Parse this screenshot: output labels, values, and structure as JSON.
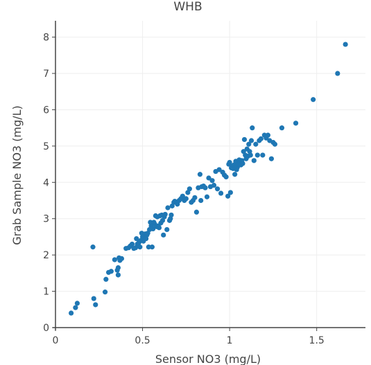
{
  "chart_data": {
    "type": "scatter",
    "title": "WHB",
    "xlabel": "Sensor NO3 (mg/L)",
    "ylabel": "Grab Sample NO3 (mg/L)",
    "xlim": [
      0,
      1.78
    ],
    "ylim": [
      0,
      8.45
    ],
    "xticks": [
      0,
      0.5,
      1,
      1.5
    ],
    "xtick_labels": [
      "0",
      "0.5",
      "1",
      "1.5"
    ],
    "yticks": [
      0,
      1,
      2,
      3,
      4,
      5,
      6,
      7,
      8
    ],
    "ytick_labels": [
      "0",
      "1",
      "2",
      "3",
      "4",
      "5",
      "6",
      "7",
      "8"
    ],
    "grid": true,
    "colors": {
      "marker": "#1f77b4",
      "grid": "#eeeeee",
      "axis": "#444444"
    },
    "series": [
      {
        "x": [
          0.09,
          0.115,
          0.125,
          0.215,
          0.22,
          0.23,
          0.285,
          0.29,
          0.305,
          0.32,
          0.34,
          0.355,
          0.36,
          0.36,
          0.365,
          0.37,
          0.38,
          0.405,
          0.42,
          0.43,
          0.44,
          0.45,
          0.46,
          0.465,
          0.47,
          0.475,
          0.48,
          0.485,
          0.49,
          0.495,
          0.5,
          0.505,
          0.51,
          0.515,
          0.52,
          0.525,
          0.53,
          0.535,
          0.54,
          0.545,
          0.55,
          0.555,
          0.56,
          0.565,
          0.57,
          0.575,
          0.58,
          0.585,
          0.59,
          0.595,
          0.6,
          0.605,
          0.61,
          0.615,
          0.62,
          0.625,
          0.63,
          0.64,
          0.645,
          0.655,
          0.66,
          0.665,
          0.67,
          0.68,
          0.685,
          0.7,
          0.71,
          0.72,
          0.73,
          0.74,
          0.75,
          0.76,
          0.77,
          0.78,
          0.79,
          0.8,
          0.81,
          0.82,
          0.83,
          0.835,
          0.84,
          0.85,
          0.86,
          0.87,
          0.88,
          0.89,
          0.9,
          0.91,
          0.92,
          0.93,
          0.94,
          0.95,
          0.96,
          0.97,
          0.98,
          0.99,
          0.995,
          1.0,
          1.005,
          1.01,
          1.015,
          1.02,
          1.025,
          1.03,
          1.035,
          1.04,
          1.045,
          1.05,
          1.055,
          1.06,
          1.065,
          1.07,
          1.075,
          1.08,
          1.085,
          1.09,
          1.095,
          1.1,
          1.105,
          1.11,
          1.115,
          1.12,
          1.125,
          1.13,
          1.14,
          1.15,
          1.16,
          1.17,
          1.18,
          1.19,
          1.2,
          1.21,
          1.22,
          1.23,
          1.24,
          1.25,
          1.26,
          1.3,
          1.38,
          1.48,
          1.62,
          1.665
        ],
        "y": [
          0.4,
          0.55,
          0.67,
          2.22,
          0.8,
          0.63,
          0.98,
          1.33,
          1.52,
          1.55,
          1.87,
          1.58,
          1.65,
          1.45,
          1.92,
          1.85,
          1.9,
          2.18,
          2.2,
          2.25,
          2.3,
          2.18,
          2.2,
          2.45,
          2.3,
          2.28,
          2.35,
          2.22,
          2.4,
          2.6,
          2.5,
          2.38,
          2.55,
          2.58,
          2.45,
          2.55,
          2.6,
          2.22,
          2.7,
          2.9,
          2.8,
          2.22,
          2.72,
          2.9,
          2.85,
          3.08,
          2.78,
          3.05,
          2.8,
          2.75,
          3.08,
          2.88,
          3.1,
          2.95,
          2.55,
          3.05,
          3.12,
          2.7,
          3.3,
          2.95,
          3.0,
          3.1,
          3.35,
          3.45,
          3.48,
          3.4,
          3.5,
          3.55,
          3.62,
          3.5,
          3.55,
          3.72,
          3.82,
          3.45,
          3.5,
          3.58,
          3.18,
          3.85,
          4.22,
          3.5,
          3.88,
          3.9,
          3.85,
          3.6,
          4.12,
          3.88,
          4.05,
          3.92,
          4.3,
          3.82,
          4.35,
          3.7,
          4.28,
          4.2,
          4.15,
          3.62,
          4.5,
          4.55,
          3.72,
          4.4,
          4.45,
          4.38,
          4.48,
          4.22,
          4.58,
          4.35,
          4.42,
          4.5,
          4.62,
          4.55,
          4.48,
          4.6,
          4.52,
          4.85,
          5.18,
          4.75,
          4.65,
          4.92,
          4.72,
          5.05,
          4.85,
          4.75,
          5.15,
          5.5,
          4.6,
          5.05,
          4.75,
          5.15,
          5.2,
          4.75,
          5.3,
          5.22,
          5.3,
          5.15,
          4.65,
          5.1,
          5.05,
          5.5,
          5.63,
          6.28,
          7.0,
          7.8
        ]
      }
    ]
  }
}
